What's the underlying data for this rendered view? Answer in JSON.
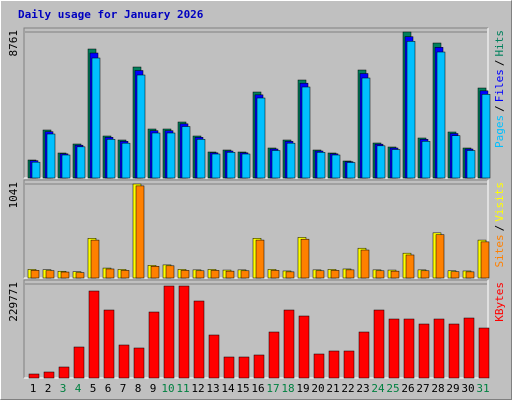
{
  "chart_data": {
    "type": "bar",
    "title": "Daily usage for January 2026",
    "legend_separator": "/",
    "categories": [
      "1",
      "2",
      "3",
      "4",
      "5",
      "6",
      "7",
      "8",
      "9",
      "10",
      "11",
      "12",
      "13",
      "14",
      "15",
      "16",
      "17",
      "18",
      "19",
      "20",
      "21",
      "22",
      "23",
      "24",
      "25",
      "26",
      "27",
      "28",
      "29",
      "30",
      "31"
    ],
    "category_colors": [
      "#000000",
      "#000000",
      "#008040",
      "#008040",
      "#000000",
      "#000000",
      "#000000",
      "#000000",
      "#000000",
      "#008040",
      "#008040",
      "#000000",
      "#000000",
      "#000000",
      "#000000",
      "#000000",
      "#008040",
      "#008040",
      "#000000",
      "#000000",
      "#000000",
      "#000000",
      "#000000",
      "#008040",
      "#008040",
      "#000000",
      "#000000",
      "#000000",
      "#000000",
      "#000000",
      "#008040"
    ],
    "panels": [
      {
        "ylim": [
          0,
          8761
        ],
        "yticks": [
          8761
        ],
        "grid": true,
        "series": [
          {
            "name": "Hits",
            "color": "#00805c",
            "values": [
              1080,
              2880,
              1500,
              2040,
              7740,
              2520,
              2280,
              6660,
              2940,
              2940,
              3360,
              2520,
              1560,
              1680,
              1560,
              5160,
              1800,
              2280,
              5880,
              1680,
              1500,
              1020,
              6480,
              2100,
              1860,
              8761,
              2400,
              8100,
              2760,
              1800,
              5400
            ]
          },
          {
            "name": "Files",
            "color": "#0000ff",
            "values": [
              1040,
              2780,
              1450,
              1970,
              7500,
              2440,
              2200,
              6450,
              2840,
              2840,
              3250,
              2440,
              1510,
              1620,
              1510,
              4990,
              1740,
              2200,
              5690,
              1620,
              1450,
              980,
              6270,
              2030,
              1800,
              8480,
              2320,
              7840,
              2670,
              1740,
              5230
            ]
          },
          {
            "name": "Pages",
            "color": "#00c0ff",
            "values": [
              950,
              2640,
              1380,
              1870,
              7200,
              2320,
              2090,
              6180,
              2700,
              2700,
              3090,
              2320,
              1440,
              1540,
              1440,
              4800,
              1650,
              2090,
              5460,
              1540,
              1380,
              930,
              6000,
              1930,
              1710,
              8200,
              2200,
              7560,
              2540,
              1650,
              5020
            ]
          }
        ]
      },
      {
        "ylim": [
          0,
          1041
        ],
        "yticks": [
          1041
        ],
        "grid": true,
        "series": [
          {
            "name": "Visits",
            "color": "#ffff00",
            "values": [
              95,
              92,
              75,
              70,
              440,
              110,
              95,
              1041,
              140,
              145,
              95,
              90,
              95,
              88,
              90,
              440,
              95,
              78,
              450,
              90,
              95,
              100,
              330,
              90,
              88,
              275,
              90,
              500,
              80,
              78,
              420
            ]
          },
          {
            "name": "Sites",
            "color": "#ff8000",
            "values": [
              85,
              82,
              66,
              60,
              420,
              100,
              84,
              1020,
              130,
              135,
              84,
              80,
              84,
              76,
              80,
              420,
              84,
              68,
              430,
              80,
              84,
              90,
              310,
              80,
              76,
              255,
              80,
              480,
              70,
              68,
              400
            ]
          }
        ]
      },
      {
        "ylim": [
          0,
          229771
        ],
        "yticks": [
          229771
        ],
        "grid": true,
        "series": [
          {
            "name": "KBytes",
            "color": "#ff0000",
            "values": [
              9776,
              14664,
              26884,
              75764,
              212628,
              166192,
              80652,
              73320,
              161304,
              224848,
              224848,
              188188,
              105092,
              51324,
              51324,
              56212,
              112424,
              166192,
              151528,
              58656,
              65988,
              65988,
              112424,
              166192,
              144196,
              144196,
              131976,
              144196,
              131976,
              146640,
              122200
            ]
          }
        ]
      }
    ]
  }
}
